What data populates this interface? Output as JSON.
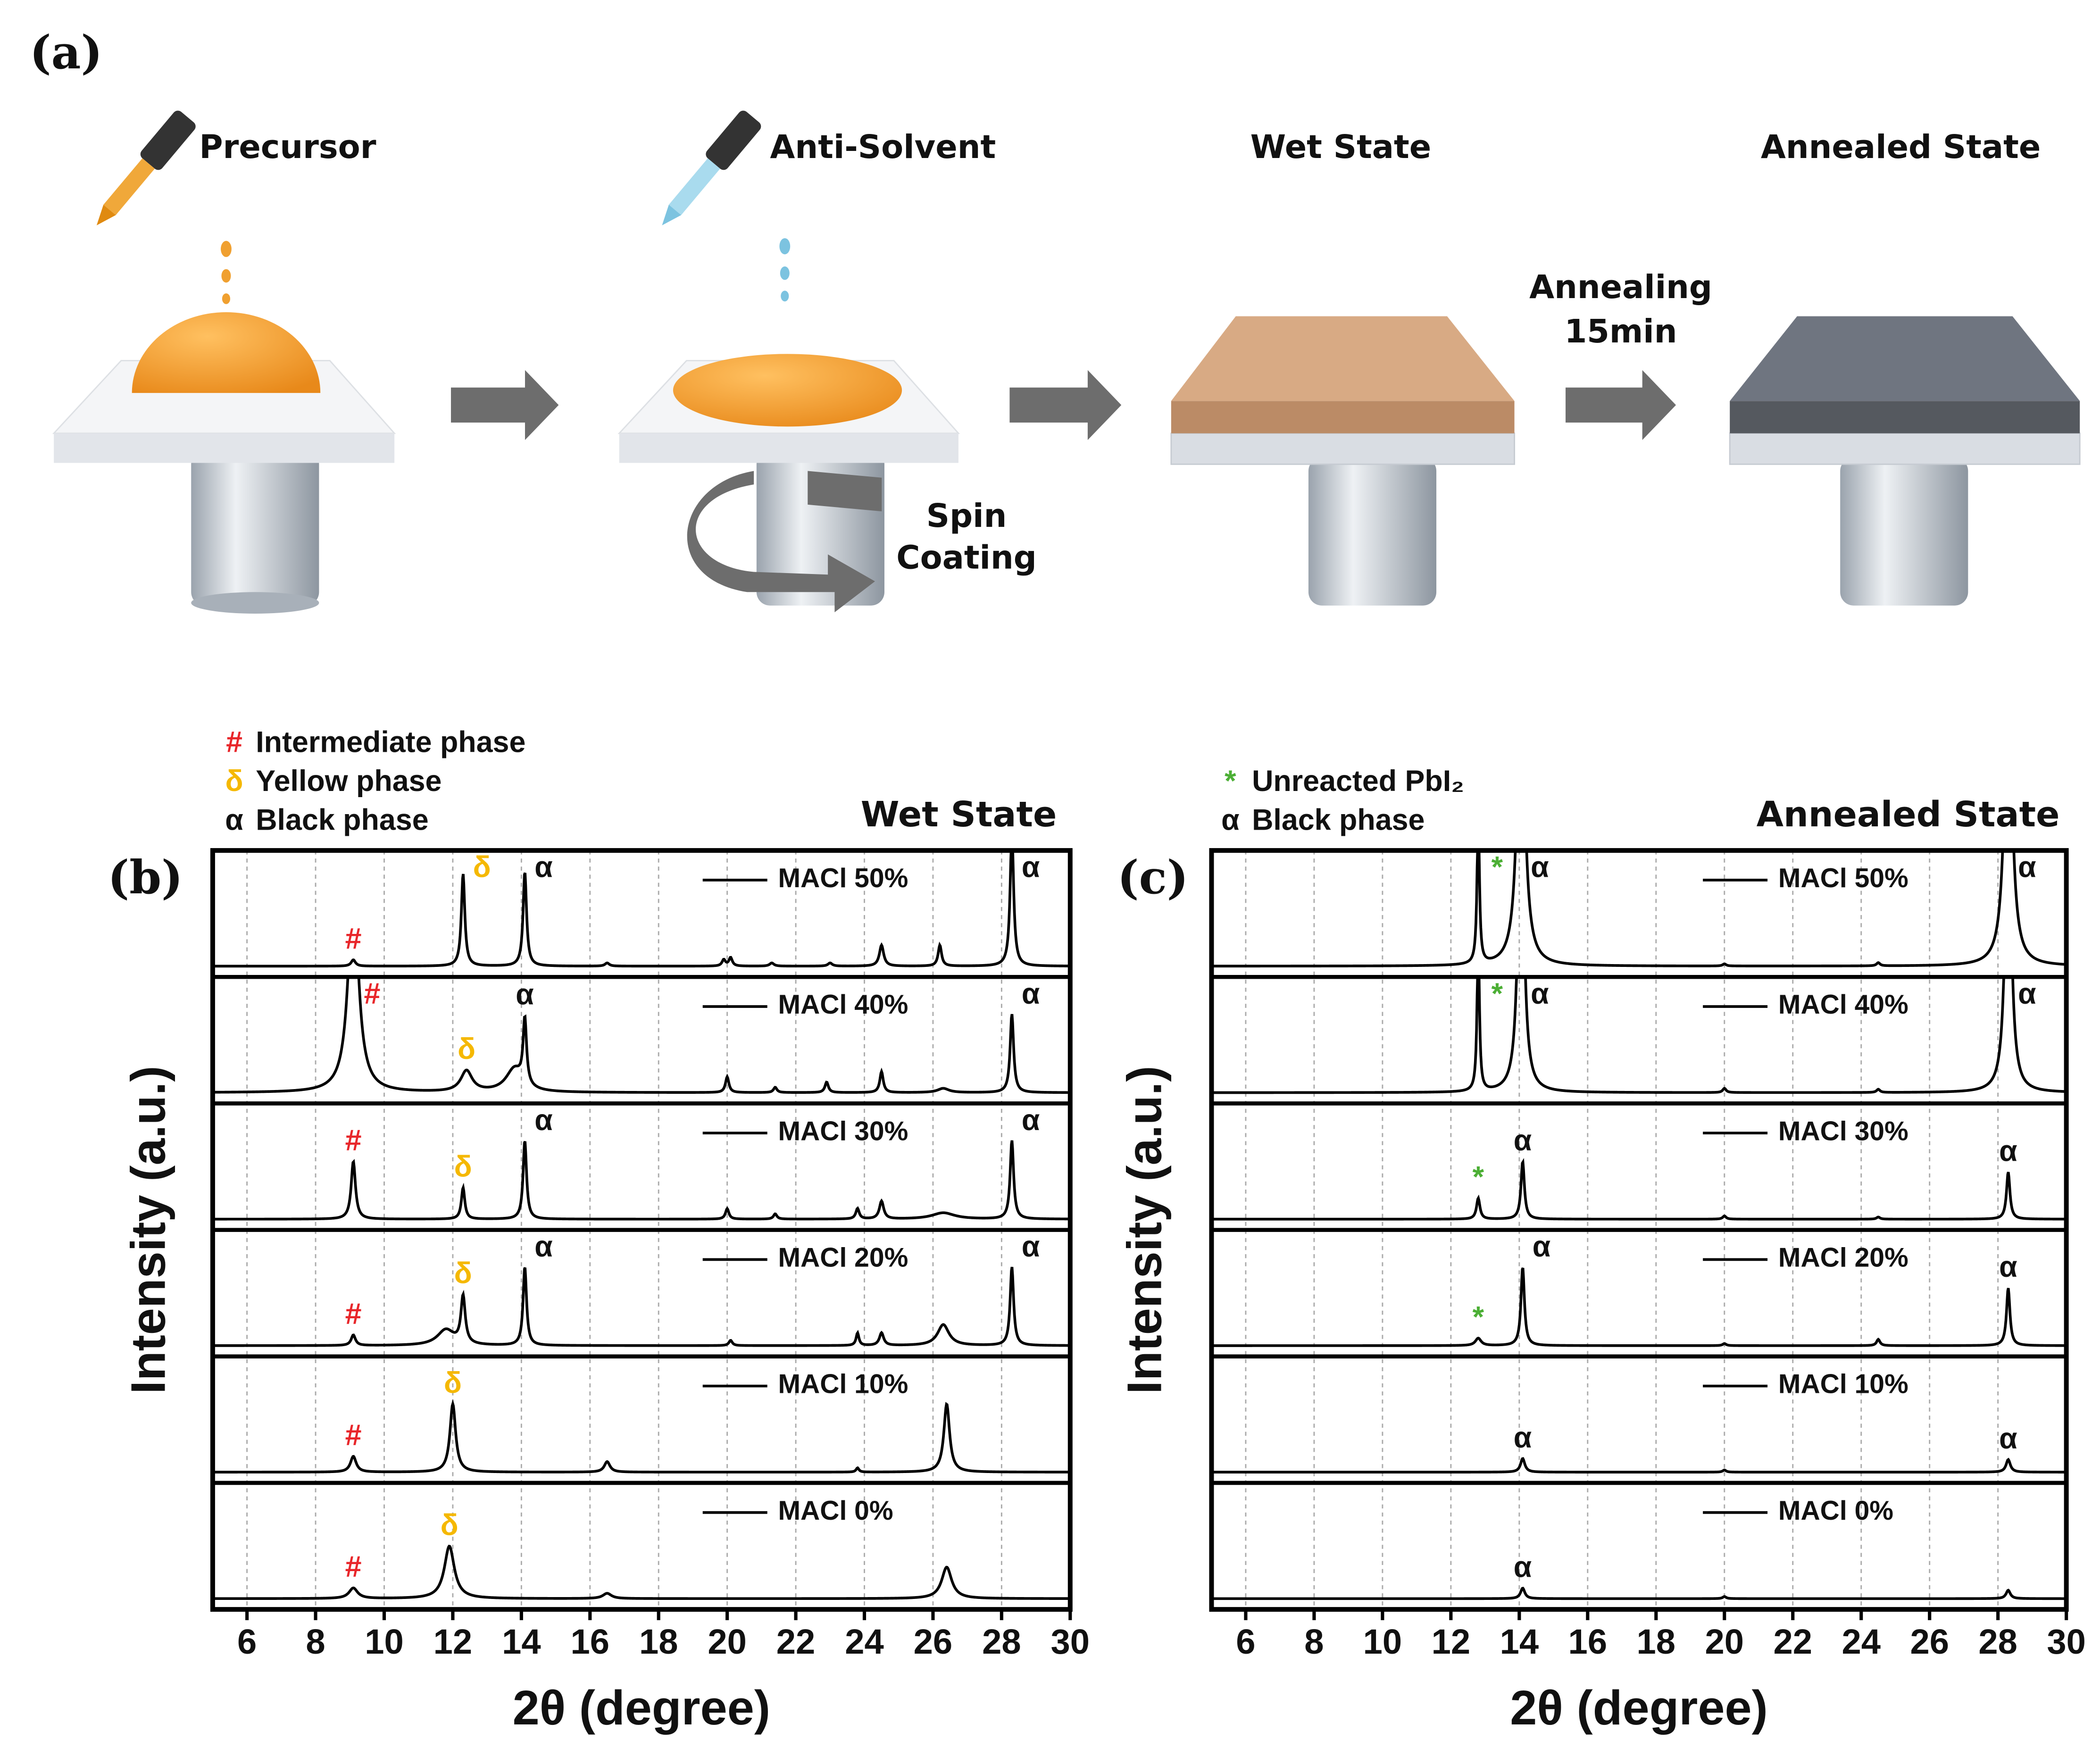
{
  "figure_label": "(a)",
  "process": {
    "steps": [
      "Precursor",
      "Anti-Solvent",
      "Wet State",
      "Annealed State"
    ],
    "spin": [
      "Spin",
      "Coating"
    ],
    "anneal": [
      "Annealing",
      "15min"
    ]
  },
  "chart_data": [
    {
      "type": "line",
      "panel_label": "(b)",
      "title": "Wet State",
      "xlabel": "2θ (degree)",
      "ylabel": "Intensity (a.u.)",
      "xlim": [
        5,
        30
      ],
      "xticks": [
        6,
        8,
        10,
        12,
        14,
        16,
        18,
        20,
        22,
        24,
        26,
        28,
        30
      ],
      "ylim": [
        0,
        1
      ],
      "grid": true,
      "color": "#000000",
      "legend": [
        {
          "symbol": "#",
          "text": "Intermediate phase",
          "color": "#e8262a"
        },
        {
          "symbol": "δ",
          "text": "Yellow phase",
          "color": "#f5b800"
        },
        {
          "symbol": "α",
          "text": "Black phase",
          "color": "#111111"
        }
      ],
      "series": [
        {
          "name": "MACl 50%",
          "peaks": [
            {
              "x": 9.1,
              "height": 0.06,
              "width": 0.15,
              "label": "#"
            },
            {
              "x": 12.3,
              "height": 0.88,
              "width": 0.12,
              "label": "δ"
            },
            {
              "x": 14.1,
              "height": 0.9,
              "width": 0.12,
              "label": "α"
            },
            {
              "x": 16.5,
              "height": 0.03,
              "width": 0.15
            },
            {
              "x": 19.9,
              "height": 0.06,
              "width": 0.12
            },
            {
              "x": 20.1,
              "height": 0.08,
              "width": 0.12
            },
            {
              "x": 21.3,
              "height": 0.03,
              "width": 0.15
            },
            {
              "x": 23.0,
              "height": 0.03,
              "width": 0.15
            },
            {
              "x": 24.5,
              "height": 0.2,
              "width": 0.15
            },
            {
              "x": 26.2,
              "height": 0.2,
              "width": 0.12
            },
            {
              "x": 28.3,
              "height": 1.3,
              "width": 0.12,
              "label": "α"
            }
          ]
        },
        {
          "name": "MACl 40%",
          "peaks": [
            {
              "x": 9.1,
              "height": 2.0,
              "width": 0.35,
              "label": "#"
            },
            {
              "x": 12.4,
              "height": 0.2,
              "width": 0.4,
              "label": "δ"
            },
            {
              "x": 13.8,
              "height": 0.22,
              "width": 0.6
            },
            {
              "x": 14.1,
              "height": 0.62,
              "width": 0.12,
              "label": "α"
            },
            {
              "x": 20.0,
              "height": 0.15,
              "width": 0.12
            },
            {
              "x": 21.4,
              "height": 0.05,
              "width": 0.12
            },
            {
              "x": 22.9,
              "height": 0.1,
              "width": 0.12
            },
            {
              "x": 24.5,
              "height": 0.2,
              "width": 0.12
            },
            {
              "x": 26.3,
              "height": 0.04,
              "width": 0.4
            },
            {
              "x": 28.3,
              "height": 0.75,
              "width": 0.12,
              "label": "α"
            }
          ]
        },
        {
          "name": "MACl 30%",
          "peaks": [
            {
              "x": 9.1,
              "height": 0.55,
              "width": 0.15,
              "label": "#"
            },
            {
              "x": 12.3,
              "height": 0.3,
              "width": 0.12,
              "label": "δ"
            },
            {
              "x": 14.1,
              "height": 0.75,
              "width": 0.12,
              "label": "α"
            },
            {
              "x": 20.0,
              "height": 0.1,
              "width": 0.12
            },
            {
              "x": 21.4,
              "height": 0.05,
              "width": 0.12
            },
            {
              "x": 23.8,
              "height": 0.1,
              "width": 0.12
            },
            {
              "x": 24.5,
              "height": 0.17,
              "width": 0.15
            },
            {
              "x": 26.3,
              "height": 0.06,
              "width": 0.8
            },
            {
              "x": 28.3,
              "height": 0.75,
              "width": 0.12,
              "label": "α"
            }
          ]
        },
        {
          "name": "MACl 20%",
          "peaks": [
            {
              "x": 9.1,
              "height": 0.1,
              "width": 0.15,
              "label": "#"
            },
            {
              "x": 11.8,
              "height": 0.15,
              "width": 0.6
            },
            {
              "x": 12.3,
              "height": 0.45,
              "width": 0.15,
              "label": "δ"
            },
            {
              "x": 14.1,
              "height": 0.75,
              "width": 0.12,
              "label": "α"
            },
            {
              "x": 20.1,
              "height": 0.05,
              "width": 0.12
            },
            {
              "x": 23.8,
              "height": 0.12,
              "width": 0.1
            },
            {
              "x": 24.5,
              "height": 0.12,
              "width": 0.15
            },
            {
              "x": 26.3,
              "height": 0.2,
              "width": 0.4
            },
            {
              "x": 28.3,
              "height": 0.75,
              "width": 0.12,
              "label": "α"
            }
          ]
        },
        {
          "name": "MACl 10%",
          "peaks": [
            {
              "x": 9.1,
              "height": 0.15,
              "width": 0.2,
              "label": "#"
            },
            {
              "x": 12.0,
              "height": 0.65,
              "width": 0.2,
              "label": "δ"
            },
            {
              "x": 16.5,
              "height": 0.1,
              "width": 0.2
            },
            {
              "x": 23.8,
              "height": 0.04,
              "width": 0.1
            },
            {
              "x": 26.4,
              "height": 0.65,
              "width": 0.2
            }
          ]
        },
        {
          "name": "MACl 0%",
          "peaks": [
            {
              "x": 9.1,
              "height": 0.1,
              "width": 0.3,
              "label": "#"
            },
            {
              "x": 11.9,
              "height": 0.5,
              "width": 0.35,
              "label": "δ"
            },
            {
              "x": 16.5,
              "height": 0.05,
              "width": 0.3
            },
            {
              "x": 26.4,
              "height": 0.3,
              "width": 0.35
            }
          ]
        }
      ]
    },
    {
      "type": "line",
      "panel_label": "(c)",
      "title": "Annealed State",
      "xlabel": "2θ (degree)",
      "ylabel": "Intensity (a.u.)",
      "xlim": [
        5,
        30
      ],
      "xticks": [
        6,
        8,
        10,
        12,
        14,
        16,
        18,
        20,
        22,
        24,
        26,
        28,
        30
      ],
      "ylim": [
        0,
        1
      ],
      "grid": true,
      "color": "#000000",
      "legend": [
        {
          "symbol": "*",
          "text": "Unreacted PbI₂",
          "color": "#4caf35"
        },
        {
          "symbol": "α",
          "text": "Black phase",
          "color": "#111111"
        }
      ],
      "series": [
        {
          "name": "MACl 50%",
          "peaks": [
            {
              "x": 12.8,
              "height": 1.5,
              "width": 0.08,
              "label": "*"
            },
            {
              "x": 14.05,
              "height": 3.0,
              "width": 0.25,
              "label": "α"
            },
            {
              "x": 20.0,
              "height": 0.02,
              "width": 0.12
            },
            {
              "x": 24.5,
              "height": 0.03,
              "width": 0.12
            },
            {
              "x": 28.3,
              "height": 3.0,
              "width": 0.25,
              "label": "α"
            }
          ]
        },
        {
          "name": "MACl 40%",
          "peaks": [
            {
              "x": 12.8,
              "height": 1.5,
              "width": 0.08,
              "label": "*"
            },
            {
              "x": 14.05,
              "height": 3.0,
              "width": 0.2,
              "label": "α"
            },
            {
              "x": 20.0,
              "height": 0.04,
              "width": 0.12
            },
            {
              "x": 24.5,
              "height": 0.03,
              "width": 0.12
            },
            {
              "x": 28.3,
              "height": 3.0,
              "width": 0.2,
              "label": "α"
            }
          ]
        },
        {
          "name": "MACl 30%",
          "peaks": [
            {
              "x": 12.8,
              "height": 0.2,
              "width": 0.12,
              "label": "*"
            },
            {
              "x": 14.1,
              "height": 0.55,
              "width": 0.12,
              "label": "α"
            },
            {
              "x": 20.0,
              "height": 0.03,
              "width": 0.12
            },
            {
              "x": 24.5,
              "height": 0.02,
              "width": 0.12
            },
            {
              "x": 28.3,
              "height": 0.45,
              "width": 0.12,
              "label": "α"
            }
          ]
        },
        {
          "name": "MACl 20%",
          "peaks": [
            {
              "x": 12.8,
              "height": 0.07,
              "width": 0.2,
              "label": "*"
            },
            {
              "x": 14.1,
              "height": 0.75,
              "width": 0.12,
              "label": "α"
            },
            {
              "x": 20.0,
              "height": 0.02,
              "width": 0.12
            },
            {
              "x": 24.5,
              "height": 0.06,
              "width": 0.12
            },
            {
              "x": 28.3,
              "height": 0.55,
              "width": 0.12,
              "label": "α"
            }
          ]
        },
        {
          "name": "MACl 10%",
          "peaks": [
            {
              "x": 14.1,
              "height": 0.13,
              "width": 0.15,
              "label": "α"
            },
            {
              "x": 20.0,
              "height": 0.02,
              "width": 0.12
            },
            {
              "x": 28.3,
              "height": 0.12,
              "width": 0.15,
              "label": "α"
            }
          ]
        },
        {
          "name": "MACl 0%",
          "peaks": [
            {
              "x": 14.1,
              "height": 0.1,
              "width": 0.15,
              "label": "α"
            },
            {
              "x": 20.0,
              "height": 0.02,
              "width": 0.12
            },
            {
              "x": 28.3,
              "height": 0.08,
              "width": 0.15
            }
          ]
        }
      ]
    }
  ]
}
